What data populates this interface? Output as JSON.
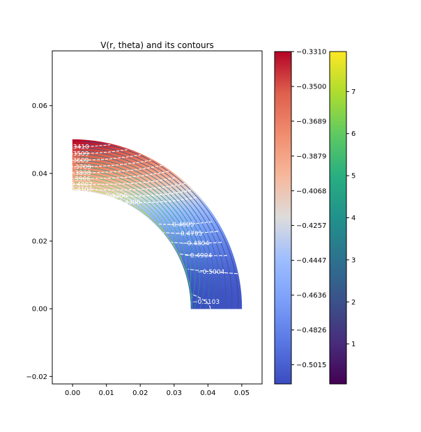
{
  "chart_data": {
    "type": "heatmap",
    "title": "V(r, theta) and its contours",
    "xlabel": "",
    "ylabel": "",
    "xlim": [
      -0.006,
      0.056
    ],
    "ylim": [
      -0.0222,
      0.0762
    ],
    "x_ticks": [
      "0.00",
      "0.01",
      "0.02",
      "0.03",
      "0.04",
      "0.05"
    ],
    "x_tick_values": [
      0.0,
      0.01,
      0.02,
      0.03,
      0.04,
      0.05
    ],
    "y_ticks": [
      "−0.02",
      "0.00",
      "0.02",
      "0.04",
      "0.06"
    ],
    "y_tick_values": [
      -0.02,
      0.0,
      0.02,
      0.04,
      0.06
    ],
    "grid": false,
    "domain": {
      "shape": "quarter-annulus",
      "r_inner": 0.035,
      "r_outer": 0.05,
      "theta_deg": [
        0,
        90
      ]
    },
    "field": {
      "name": "V",
      "colormap": "coolwarm",
      "vmin": -0.512,
      "vmax": -0.331,
      "value_at_inner_radius_theta90": -0.412,
      "value_at_outer_radius_theta90": -0.331,
      "value_at_inner_radius_theta0": -0.512,
      "value_at_outer_radius_theta0": -0.508
    },
    "contours": [
      {
        "label": "−0.3410",
        "value": -0.341
      },
      {
        "label": "−0.3509",
        "value": -0.3509
      },
      {
        "label": "−0.3609",
        "value": -0.3609
      },
      {
        "label": "−0.3709",
        "value": -0.3709
      },
      {
        "label": "−0.3808",
        "value": -0.3808
      },
      {
        "label": "−0.3906",
        "value": -0.3906
      },
      {
        "label": "−0.4007",
        "value": -0.4007
      },
      {
        "label": "−0.4107",
        "value": -0.4107
      },
      {
        "label": "−0.4206",
        "value": -0.4206
      },
      {
        "label": "−0.4306",
        "value": -0.4306
      },
      {
        "label": "−0.4605",
        "value": -0.4605
      },
      {
        "label": "−0.4705",
        "value": -0.4705
      },
      {
        "label": "−0.4804",
        "value": -0.4804
      },
      {
        "label": "−0.4904",
        "value": -0.4904
      },
      {
        "label": "−0.5004",
        "value": -0.5004
      },
      {
        "label": "−0.5103",
        "value": -0.5103
      }
    ],
    "streamlines": {
      "colormap": "viridis",
      "count": 16,
      "theta_end_deg": 0
    },
    "colorbars": [
      {
        "name": "V",
        "colormap": "coolwarm",
        "range": [
          -0.512,
          -0.331
        ],
        "ticks": [
          "−0.3310",
          "−0.3500",
          "−0.3689",
          "−0.3879",
          "−0.4068",
          "−0.4257",
          "−0.4447",
          "−0.4636",
          "−0.4826",
          "−0.5015"
        ],
        "tick_values": [
          -0.331,
          -0.35,
          -0.3689,
          -0.3879,
          -0.4068,
          -0.4257,
          -0.4447,
          -0.4636,
          -0.4826,
          -0.5015
        ]
      },
      {
        "name": "streamline magnitude",
        "colormap": "viridis",
        "range": [
          0.05,
          7.95
        ],
        "ticks": [
          "1",
          "2",
          "3",
          "4",
          "5",
          "6",
          "7"
        ],
        "tick_values": [
          1,
          2,
          3,
          4,
          5,
          6,
          7
        ]
      }
    ]
  }
}
